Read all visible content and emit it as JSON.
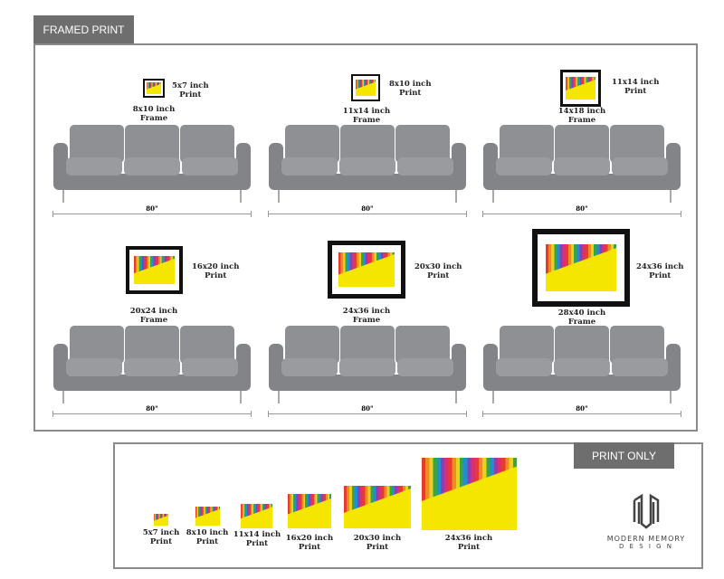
{
  "framed": {
    "tab_label": "FRAMED PRINT",
    "sofa_width": "80\"",
    "items": [
      {
        "print": "5x7 inch\nPrint",
        "frame": "8x10 inch\nFrame"
      },
      {
        "print": "8x10 inch\nPrint",
        "frame": "11x14 inch\nFrame"
      },
      {
        "print": "11x14 inch\nPrint",
        "frame": "14x18 inch\nFrame"
      },
      {
        "print": "16x20 inch\nPrint",
        "frame": "20x24 inch\nFrame"
      },
      {
        "print": "20x30 inch\nPrint",
        "frame": "24x36 inch\nFrame"
      },
      {
        "print": "24x36 inch\nPrint",
        "frame": "28x40 inch\nFrame"
      }
    ]
  },
  "print_only": {
    "tab_label": "PRINT ONLY",
    "items": [
      "5x7 inch\nPrint",
      "8x10 inch\nPrint",
      "11x14 inch\nPrint",
      "16x20 inch\nPrint",
      "20x30 inch\nPrint",
      "24x36 inch\nPrint"
    ]
  },
  "brand": {
    "name": "MODERN MEMORY",
    "sub": "D E S I G N"
  }
}
